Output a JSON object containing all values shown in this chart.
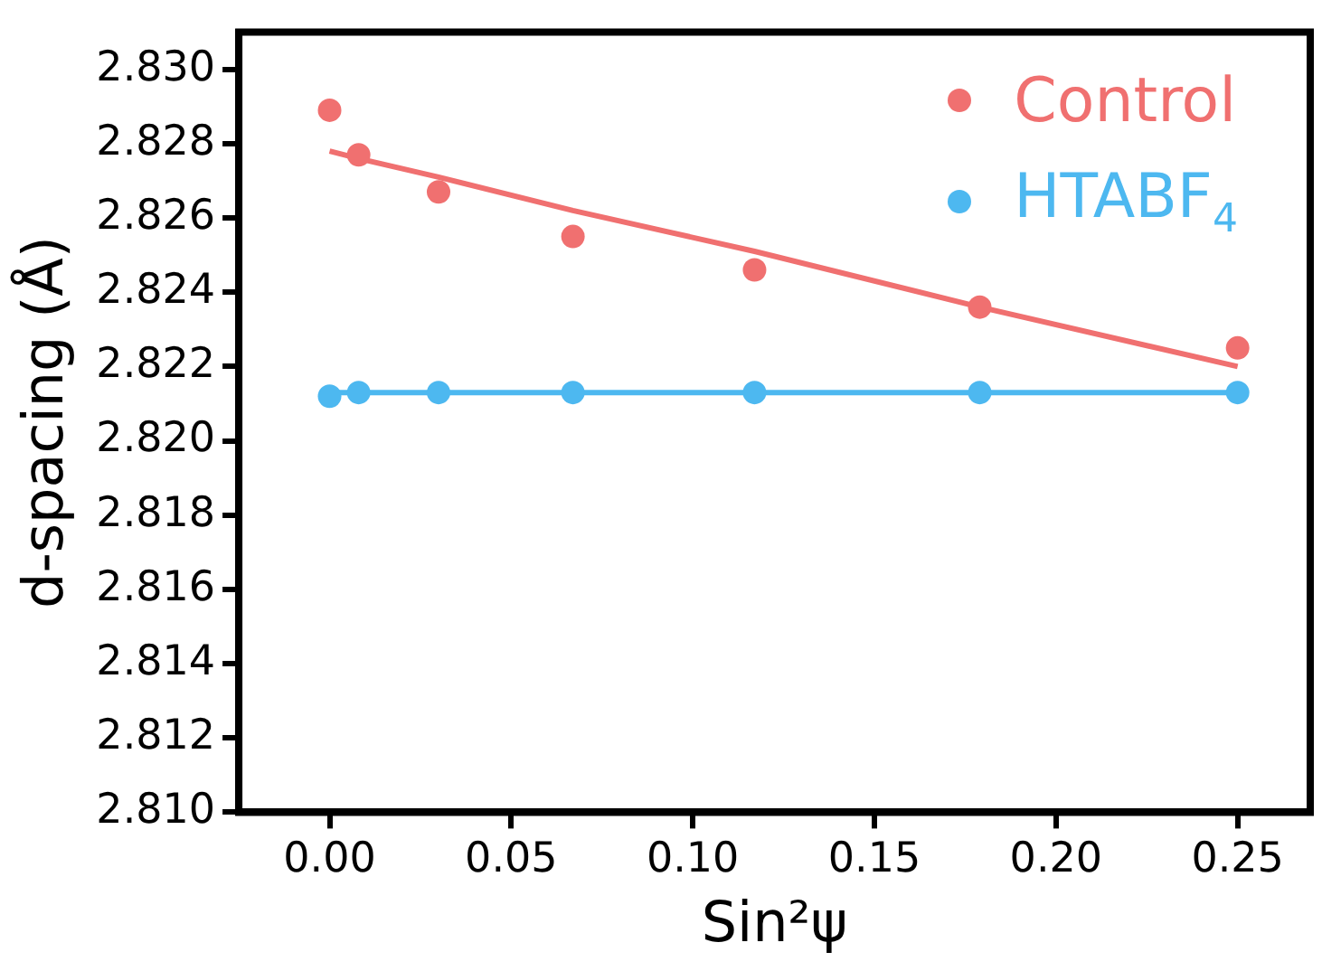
{
  "chart_data": {
    "type": "scatter",
    "xlabel": "Sin²ψ",
    "ylabel": "d-spacing (Å)",
    "xlim": [
      -0.025,
      0.27
    ],
    "ylim": [
      2.81,
      2.831
    ],
    "xticks": [
      {
        "value": 0,
        "label": "0.00"
      },
      {
        "value": 0.05,
        "label": "0.05"
      },
      {
        "value": 0.1,
        "label": "0.10"
      },
      {
        "value": 0.15,
        "label": "0.15"
      },
      {
        "value": 0.2,
        "label": "0.20"
      },
      {
        "value": 0.25,
        "label": "0.25"
      }
    ],
    "yticks": [
      {
        "value": 2.81,
        "label": "2.810"
      },
      {
        "value": 2.812,
        "label": "2.812"
      },
      {
        "value": 2.814,
        "label": "2.814"
      },
      {
        "value": 2.816,
        "label": "2.816"
      },
      {
        "value": 2.818,
        "label": "2.818"
      },
      {
        "value": 2.82,
        "label": "2.820"
      },
      {
        "value": 2.822,
        "label": "2.822"
      },
      {
        "value": 2.824,
        "label": "2.824"
      },
      {
        "value": 2.826,
        "label": "2.826"
      },
      {
        "value": 2.828,
        "label": "2.828"
      },
      {
        "value": 2.83,
        "label": "2.830"
      }
    ],
    "x": [
      0,
      0.008,
      0.03,
      0.067,
      0.117,
      0.179,
      0.25
    ],
    "series": [
      {
        "name": "Control",
        "color": "#f07070",
        "marker": "circle",
        "values": [
          2.8289,
          2.8277,
          2.8267,
          2.8255,
          2.8246,
          2.8236,
          2.8225
        ]
      },
      {
        "name": "HTABF$_{4}$",
        "color": "#4db8f0",
        "marker": "circle",
        "values": [
          2.8212,
          2.8213,
          2.8213,
          2.8213,
          2.8213,
          2.8213,
          2.8213
        ]
      },
      {
        "type": "line",
        "color": "#f07070",
        "marker": "none",
        "values": [
          2.8278,
          2.8276,
          2.8271,
          2.8262,
          2.8251,
          2.8236,
          2.822
        ]
      },
      {
        "type": "line",
        "color": "#4db8f0",
        "marker": "none",
        "values": [
          2.8213,
          2.8213,
          2.8213,
          2.8213,
          2.8213,
          2.8213,
          2.8213
        ]
      }
    ],
    "grid": false,
    "legend": "top right"
  }
}
